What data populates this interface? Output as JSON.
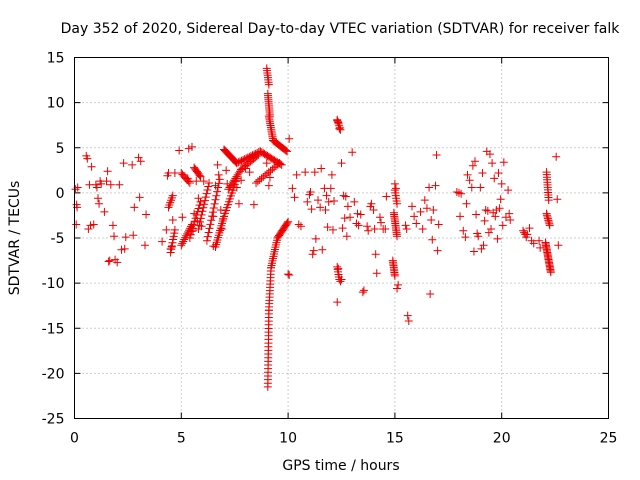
{
  "chart_data": {
    "type": "scatter",
    "title": "Day 352 of 2020, Sidereal Day-to-day VTEC variation (SDTVAR) for receiver falk",
    "xlabel": "GPS time / hours",
    "ylabel": "SDTVAR / TECUs",
    "xlim": [
      0,
      25
    ],
    "ylim": [
      -25,
      15
    ],
    "x_ticks": [
      0,
      5,
      10,
      15,
      20,
      25
    ],
    "x_tick_labels": [
      "0",
      "5",
      "10",
      "15",
      "20",
      "25"
    ],
    "y_ticks": [
      -25,
      -20,
      -15,
      -10,
      -5,
      0,
      5,
      10,
      15
    ],
    "y_tick_labels": [
      "-25",
      "-20",
      "-15",
      "-10",
      "-5",
      "0",
      "5",
      "10",
      "15"
    ],
    "grid": true,
    "marker": "+",
    "color": "#ee0000",
    "series": [
      {
        "name": "SDTVAR",
        "points": [
          [
            0.05,
            0.4
          ],
          [
            0.1,
            -1.3
          ],
          [
            0.12,
            -1.6
          ],
          [
            0.15,
            0.6
          ],
          [
            0.08,
            -3.5
          ],
          [
            0.55,
            4.1
          ],
          [
            0.6,
            3.8
          ],
          [
            0.65,
            -4.0
          ],
          [
            0.7,
            0.9
          ],
          [
            0.75,
            -3.6
          ],
          [
            0.8,
            2.9
          ],
          [
            0.9,
            -3.5
          ],
          [
            1.0,
            0.9
          ],
          [
            1.05,
            0.6
          ],
          [
            1.1,
            -0.6
          ],
          [
            1.15,
            -1.2
          ],
          [
            1.2,
            1.3
          ],
          [
            1.25,
            1.0
          ],
          [
            1.4,
            -2.1
          ],
          [
            1.5,
            1.3
          ],
          [
            1.55,
            2.4
          ],
          [
            1.6,
            -7.6
          ],
          [
            1.65,
            -7.5
          ],
          [
            1.7,
            0.9
          ],
          [
            1.8,
            -3.6
          ],
          [
            1.85,
            -4.8
          ],
          [
            1.9,
            -7.4
          ],
          [
            2.0,
            -7.7
          ],
          [
            2.1,
            0.9
          ],
          [
            2.2,
            -6.3
          ],
          [
            2.3,
            3.3
          ],
          [
            2.35,
            -6.2
          ],
          [
            2.4,
            -4.9
          ],
          [
            2.7,
            3.1
          ],
          [
            2.75,
            -4.7
          ],
          [
            2.8,
            -1.6
          ],
          [
            3.0,
            3.9
          ],
          [
            3.05,
            -0.5
          ],
          [
            3.1,
            3.5
          ],
          [
            3.3,
            -5.8
          ],
          [
            3.35,
            -2.4
          ],
          [
            4.1,
            -5.4
          ],
          [
            4.3,
            -4.1
          ],
          [
            4.35,
            1.9
          ],
          [
            4.4,
            2.2
          ],
          [
            4.5,
            -6.2
          ],
          [
            4.55,
            -6.0
          ],
          [
            4.6,
            -3.0
          ],
          [
            4.7,
            2.2
          ],
          [
            4.9,
            4.7
          ],
          [
            5.05,
            -2.7
          ],
          [
            5.3,
            1.6
          ],
          [
            5.35,
            4.9
          ],
          [
            5.5,
            5.1
          ],
          [
            5.55,
            -4.2
          ],
          [
            5.6,
            -2.3
          ],
          [
            5.7,
            1.3
          ],
          [
            5.75,
            -3.1
          ],
          [
            5.8,
            -0.6
          ],
          [
            5.95,
            -3.7
          ],
          [
            6.05,
            1.3
          ],
          [
            6.5,
            -5.9
          ],
          [
            6.5,
            -2.6
          ],
          [
            6.6,
            0.8
          ],
          [
            6.7,
            3.1
          ],
          [
            6.75,
            2.0
          ],
          [
            6.85,
            -1.9
          ],
          [
            6.9,
            -4.0
          ],
          [
            6.95,
            -2.9
          ],
          [
            7.1,
            2.5
          ],
          [
            7.15,
            1.0
          ],
          [
            7.6,
            0.6
          ],
          [
            7.7,
            -1.2
          ],
          [
            7.8,
            1.4
          ],
          [
            8.0,
            2.7
          ],
          [
            8.2,
            2.3
          ],
          [
            8.4,
            -1.3
          ],
          [
            9.0,
            3.3
          ],
          [
            9.1,
            0.8
          ],
          [
            9.15,
            1.7
          ],
          [
            10.05,
            6.0
          ],
          [
            10.0,
            -9.0
          ],
          [
            10.05,
            -9.1
          ],
          [
            10.2,
            0.5
          ],
          [
            10.3,
            -0.5
          ],
          [
            10.4,
            2.0
          ],
          [
            10.5,
            -3.5
          ],
          [
            10.6,
            -3.7
          ],
          [
            10.8,
            2.3
          ],
          [
            10.9,
            -1.0
          ],
          [
            11.0,
            -0.2
          ],
          [
            11.05,
            0.1
          ],
          [
            11.1,
            -1.8
          ],
          [
            11.15,
            -6.8
          ],
          [
            11.2,
            -6.4
          ],
          [
            11.25,
            2.3
          ],
          [
            11.3,
            -5.1
          ],
          [
            11.4,
            -0.8
          ],
          [
            11.5,
            -1.6
          ],
          [
            11.55,
            2.7
          ],
          [
            11.6,
            -6.3
          ],
          [
            11.7,
            0.5
          ],
          [
            11.75,
            -1.9
          ],
          [
            11.8,
            -0.3
          ],
          [
            11.85,
            -3.8
          ],
          [
            11.9,
            -1.0
          ],
          [
            12.0,
            0.5
          ],
          [
            12.05,
            2.0
          ],
          [
            12.1,
            -4.1
          ],
          [
            12.15,
            -0.9
          ],
          [
            12.3,
            8.0
          ],
          [
            12.35,
            7.8
          ],
          [
            12.35,
            -8.4
          ],
          [
            12.4,
            7.1
          ],
          [
            12.45,
            -9.8
          ],
          [
            12.5,
            -9.6
          ],
          [
            12.3,
            -12.1
          ],
          [
            12.5,
            3.3
          ],
          [
            12.55,
            -3.9
          ],
          [
            12.6,
            -0.3
          ],
          [
            12.65,
            -2.8
          ],
          [
            12.7,
            -0.4
          ],
          [
            12.75,
            -4.8
          ],
          [
            12.8,
            -1.5
          ],
          [
            12.9,
            -2.7
          ],
          [
            13.0,
            4.5
          ],
          [
            13.1,
            -1.0
          ],
          [
            13.2,
            -3.4
          ],
          [
            13.25,
            -2.3
          ],
          [
            13.3,
            -3.6
          ],
          [
            13.4,
            -2.4
          ],
          [
            13.5,
            -11.0
          ],
          [
            13.55,
            -10.8
          ],
          [
            13.7,
            -3.7
          ],
          [
            13.75,
            -4.2
          ],
          [
            13.85,
            -1.5
          ],
          [
            13.9,
            -1.2
          ],
          [
            14.0,
            -1.9
          ],
          [
            14.05,
            -4.0
          ],
          [
            14.1,
            -6.8
          ],
          [
            14.15,
            -8.9
          ],
          [
            14.3,
            -2.7
          ],
          [
            14.35,
            -3.3
          ],
          [
            14.45,
            -4.0
          ],
          [
            14.55,
            -4.0
          ],
          [
            14.6,
            -0.4
          ],
          [
            15.0,
            1.0
          ],
          [
            15.05,
            0.5
          ],
          [
            15.1,
            -10.6
          ],
          [
            15.15,
            -10.2
          ],
          [
            15.5,
            -3.6
          ],
          [
            15.55,
            -4.0
          ],
          [
            15.6,
            -13.6
          ],
          [
            15.65,
            -14.2
          ],
          [
            15.8,
            -1.5
          ],
          [
            15.9,
            -2.6
          ],
          [
            16.0,
            -3.4
          ],
          [
            16.2,
            -2.1
          ],
          [
            16.3,
            -4.0
          ],
          [
            16.4,
            -0.8
          ],
          [
            16.5,
            -1.7
          ],
          [
            16.6,
            0.6
          ],
          [
            16.65,
            -11.2
          ],
          [
            16.7,
            -3.0
          ],
          [
            16.75,
            -5.2
          ],
          [
            16.8,
            -1.9
          ],
          [
            16.9,
            0.8
          ],
          [
            16.95,
            4.2
          ],
          [
            17.0,
            -6.4
          ],
          [
            17.05,
            -3.5
          ],
          [
            17.9,
            0.1
          ],
          [
            18.0,
            0.0
          ],
          [
            18.05,
            -2.6
          ],
          [
            18.1,
            -0.1
          ],
          [
            18.2,
            -4.2
          ],
          [
            18.3,
            -4.9
          ],
          [
            18.35,
            -1.2
          ],
          [
            18.4,
            2.0
          ],
          [
            18.5,
            1.4
          ],
          [
            18.6,
            0.6
          ],
          [
            18.65,
            3.0
          ],
          [
            18.7,
            -6.5
          ],
          [
            18.75,
            3.5
          ],
          [
            18.8,
            -2.4
          ],
          [
            18.85,
            -4.5
          ],
          [
            18.9,
            -4.8
          ],
          [
            19.0,
            0.6
          ],
          [
            19.05,
            -6.2
          ],
          [
            19.1,
            2.2
          ],
          [
            19.15,
            -5.8
          ],
          [
            19.2,
            -3.1
          ],
          [
            19.25,
            -1.9
          ],
          [
            19.3,
            4.6
          ],
          [
            19.35,
            -2.0
          ],
          [
            19.4,
            -4.4
          ],
          [
            19.45,
            4.3
          ],
          [
            19.5,
            -4.0
          ],
          [
            19.55,
            3.3
          ],
          [
            19.6,
            -2.2
          ],
          [
            19.65,
            1.6
          ],
          [
            19.7,
            -2.6
          ],
          [
            19.75,
            -1.9
          ],
          [
            19.8,
            -5.1
          ],
          [
            19.85,
            2.2
          ],
          [
            19.9,
            -1.7
          ],
          [
            19.95,
            -0.7
          ],
          [
            20.0,
            1.0
          ],
          [
            20.05,
            -3.6
          ],
          [
            20.1,
            3.4
          ],
          [
            20.2,
            -2.7
          ],
          [
            20.3,
            0.3
          ],
          [
            20.35,
            -2.3
          ],
          [
            20.4,
            -3.0
          ],
          [
            21.0,
            -4.2
          ],
          [
            21.05,
            -4.4
          ],
          [
            21.1,
            -4.6
          ],
          [
            21.15,
            -4.9
          ],
          [
            21.2,
            -4.6
          ],
          [
            21.3,
            -3.9
          ],
          [
            21.4,
            -5.3
          ],
          [
            21.5,
            -5.6
          ],
          [
            21.75,
            -5.3
          ],
          [
            21.8,
            -6.1
          ],
          [
            22.55,
            4.0
          ],
          [
            22.6,
            -0.7
          ],
          [
            22.65,
            -5.8
          ]
        ],
        "segments": [
          {
            "x0": 9.05,
            "x1": 9.1,
            "y0": -21.5,
            "y1": -13.0,
            "n": 22
          },
          {
            "x0": 9.1,
            "x1": 9.2,
            "y0": -13.0,
            "y1": -8.3,
            "n": 14
          },
          {
            "x0": 9.2,
            "x1": 9.5,
            "y0": -8.3,
            "y1": -5.0,
            "n": 14
          },
          {
            "x0": 9.5,
            "x1": 10.0,
            "y0": -5.0,
            "y1": -3.2,
            "n": 14
          },
          {
            "x0": 9.0,
            "x1": 9.1,
            "y0": 13.8,
            "y1": 12.0,
            "n": 8
          },
          {
            "x0": 9.05,
            "x1": 9.15,
            "y0": 11.0,
            "y1": 8.5,
            "n": 12
          },
          {
            "x0": 9.1,
            "x1": 9.3,
            "y0": 8.5,
            "y1": 5.8,
            "n": 14
          },
          {
            "x0": 9.3,
            "x1": 9.95,
            "y0": 5.8,
            "y1": 4.6,
            "n": 14
          },
          {
            "x0": 7.0,
            "x1": 7.6,
            "y0": 4.8,
            "y1": 3.3,
            "n": 16
          },
          {
            "x0": 7.6,
            "x1": 8.7,
            "y0": 3.3,
            "y1": 4.6,
            "n": 16
          },
          {
            "x0": 8.7,
            "x1": 9.7,
            "y0": 4.6,
            "y1": 3.1,
            "n": 16
          },
          {
            "x0": 7.2,
            "x1": 7.8,
            "y0": 0.4,
            "y1": 2.6,
            "n": 12
          },
          {
            "x0": 7.8,
            "x1": 8.6,
            "y0": 2.6,
            "y1": 4.2,
            "n": 12
          },
          {
            "x0": 8.5,
            "x1": 9.6,
            "y0": 1.1,
            "y1": 3.3,
            "n": 14
          },
          {
            "x0": 6.6,
            "x1": 7.0,
            "y0": -6.0,
            "y1": -2.6,
            "n": 14
          },
          {
            "x0": 7.0,
            "x1": 7.6,
            "y0": -2.6,
            "y1": 1.6,
            "n": 14
          },
          {
            "x0": 6.2,
            "x1": 6.8,
            "y0": -5.3,
            "y1": 1.5,
            "n": 16
          },
          {
            "x0": 5.8,
            "x1": 6.3,
            "y0": -4.0,
            "y1": 1.1,
            "n": 14
          },
          {
            "x0": 5.4,
            "x1": 5.9,
            "y0": -5.0,
            "y1": -1.0,
            "n": 12
          },
          {
            "x0": 5.0,
            "x1": 5.5,
            "y0": -5.8,
            "y1": -3.5,
            "n": 12
          },
          {
            "x0": 5.0,
            "x1": 5.4,
            "y0": 2.2,
            "y1": 1.1,
            "n": 8
          },
          {
            "x0": 5.6,
            "x1": 5.9,
            "y0": 2.8,
            "y1": 1.8,
            "n": 8
          },
          {
            "x0": 4.5,
            "x1": 4.7,
            "y0": -6.6,
            "y1": -4.1,
            "n": 8
          },
          {
            "x0": 4.4,
            "x1": 4.6,
            "y0": -1.6,
            "y1": -0.3,
            "n": 6
          },
          {
            "x0": 12.3,
            "x1": 12.45,
            "y0": 8.1,
            "y1": 7.0,
            "n": 6
          },
          {
            "x0": 12.3,
            "x1": 12.4,
            "y0": -8.2,
            "y1": -9.6,
            "n": 6
          },
          {
            "x0": 14.95,
            "x1": 15.1,
            "y0": -2.2,
            "y1": -4.8,
            "n": 14
          },
          {
            "x0": 14.9,
            "x1": 15.0,
            "y0": -7.5,
            "y1": -9.2,
            "n": 10
          },
          {
            "x0": 15.0,
            "x1": 15.1,
            "y0": 0.3,
            "y1": -1.2,
            "n": 6
          },
          {
            "x0": 22.1,
            "x1": 22.2,
            "y0": 2.3,
            "y1": -0.8,
            "n": 12
          },
          {
            "x0": 22.1,
            "x1": 22.25,
            "y0": -2.3,
            "y1": -3.6,
            "n": 8
          },
          {
            "x0": 22.05,
            "x1": 22.3,
            "y0": -5.5,
            "y1": -8.8,
            "n": 22
          }
        ]
      }
    ]
  }
}
